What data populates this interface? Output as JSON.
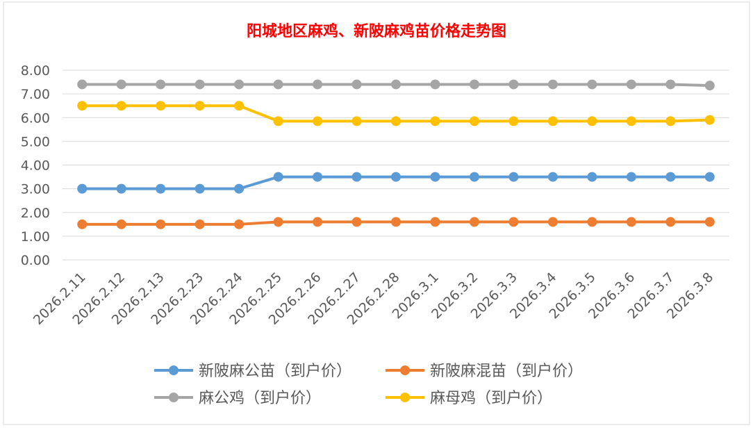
{
  "chart_data": {
    "type": "line",
    "title": "阳城地区麻鸡、新陂麻鸡苗价格走势图",
    "title_color": "#ff0000",
    "xlabel": "",
    "ylabel": "",
    "ylim": [
      0,
      8
    ],
    "y_ticks": [
      "0.00",
      "1.00",
      "2.00",
      "3.00",
      "4.00",
      "5.00",
      "6.00",
      "7.00",
      "8.00"
    ],
    "grid": true,
    "legend_position": "bottom",
    "categories": [
      "2026.2.11",
      "2026.2.12",
      "2026.2.13",
      "2026.2.23",
      "2026.2.24",
      "2026.2.25",
      "2026.2.26",
      "2026.2.27",
      "2026.2.28",
      "2026.3.1",
      "2026.3.2",
      "2026.3.3",
      "2026.3.4",
      "2026.3.5",
      "2026.3.6",
      "2026.3.7",
      "2026.3.8"
    ],
    "series": [
      {
        "name": "新陂麻公苗（到户价）",
        "color": "#5b9bd5",
        "values": [
          3.0,
          3.0,
          3.0,
          3.0,
          3.0,
          3.5,
          3.5,
          3.5,
          3.5,
          3.5,
          3.5,
          3.5,
          3.5,
          3.5,
          3.5,
          3.5,
          3.5
        ]
      },
      {
        "name": "新陂麻混苗（到户价）",
        "color": "#ed7d31",
        "values": [
          1.5,
          1.5,
          1.5,
          1.5,
          1.5,
          1.6,
          1.6,
          1.6,
          1.6,
          1.6,
          1.6,
          1.6,
          1.6,
          1.6,
          1.6,
          1.6,
          1.6
        ]
      },
      {
        "name": "麻公鸡（到户价）",
        "color": "#a5a5a5",
        "values": [
          7.4,
          7.4,
          7.4,
          7.4,
          7.4,
          7.4,
          7.4,
          7.4,
          7.4,
          7.4,
          7.4,
          7.4,
          7.4,
          7.4,
          7.4,
          7.4,
          7.35
        ]
      },
      {
        "name": "麻母鸡（到户价）",
        "color": "#ffc000",
        "values": [
          6.5,
          6.5,
          6.5,
          6.5,
          6.5,
          5.85,
          5.85,
          5.85,
          5.85,
          5.85,
          5.85,
          5.85,
          5.85,
          5.85,
          5.85,
          5.85,
          5.9
        ]
      }
    ]
  }
}
